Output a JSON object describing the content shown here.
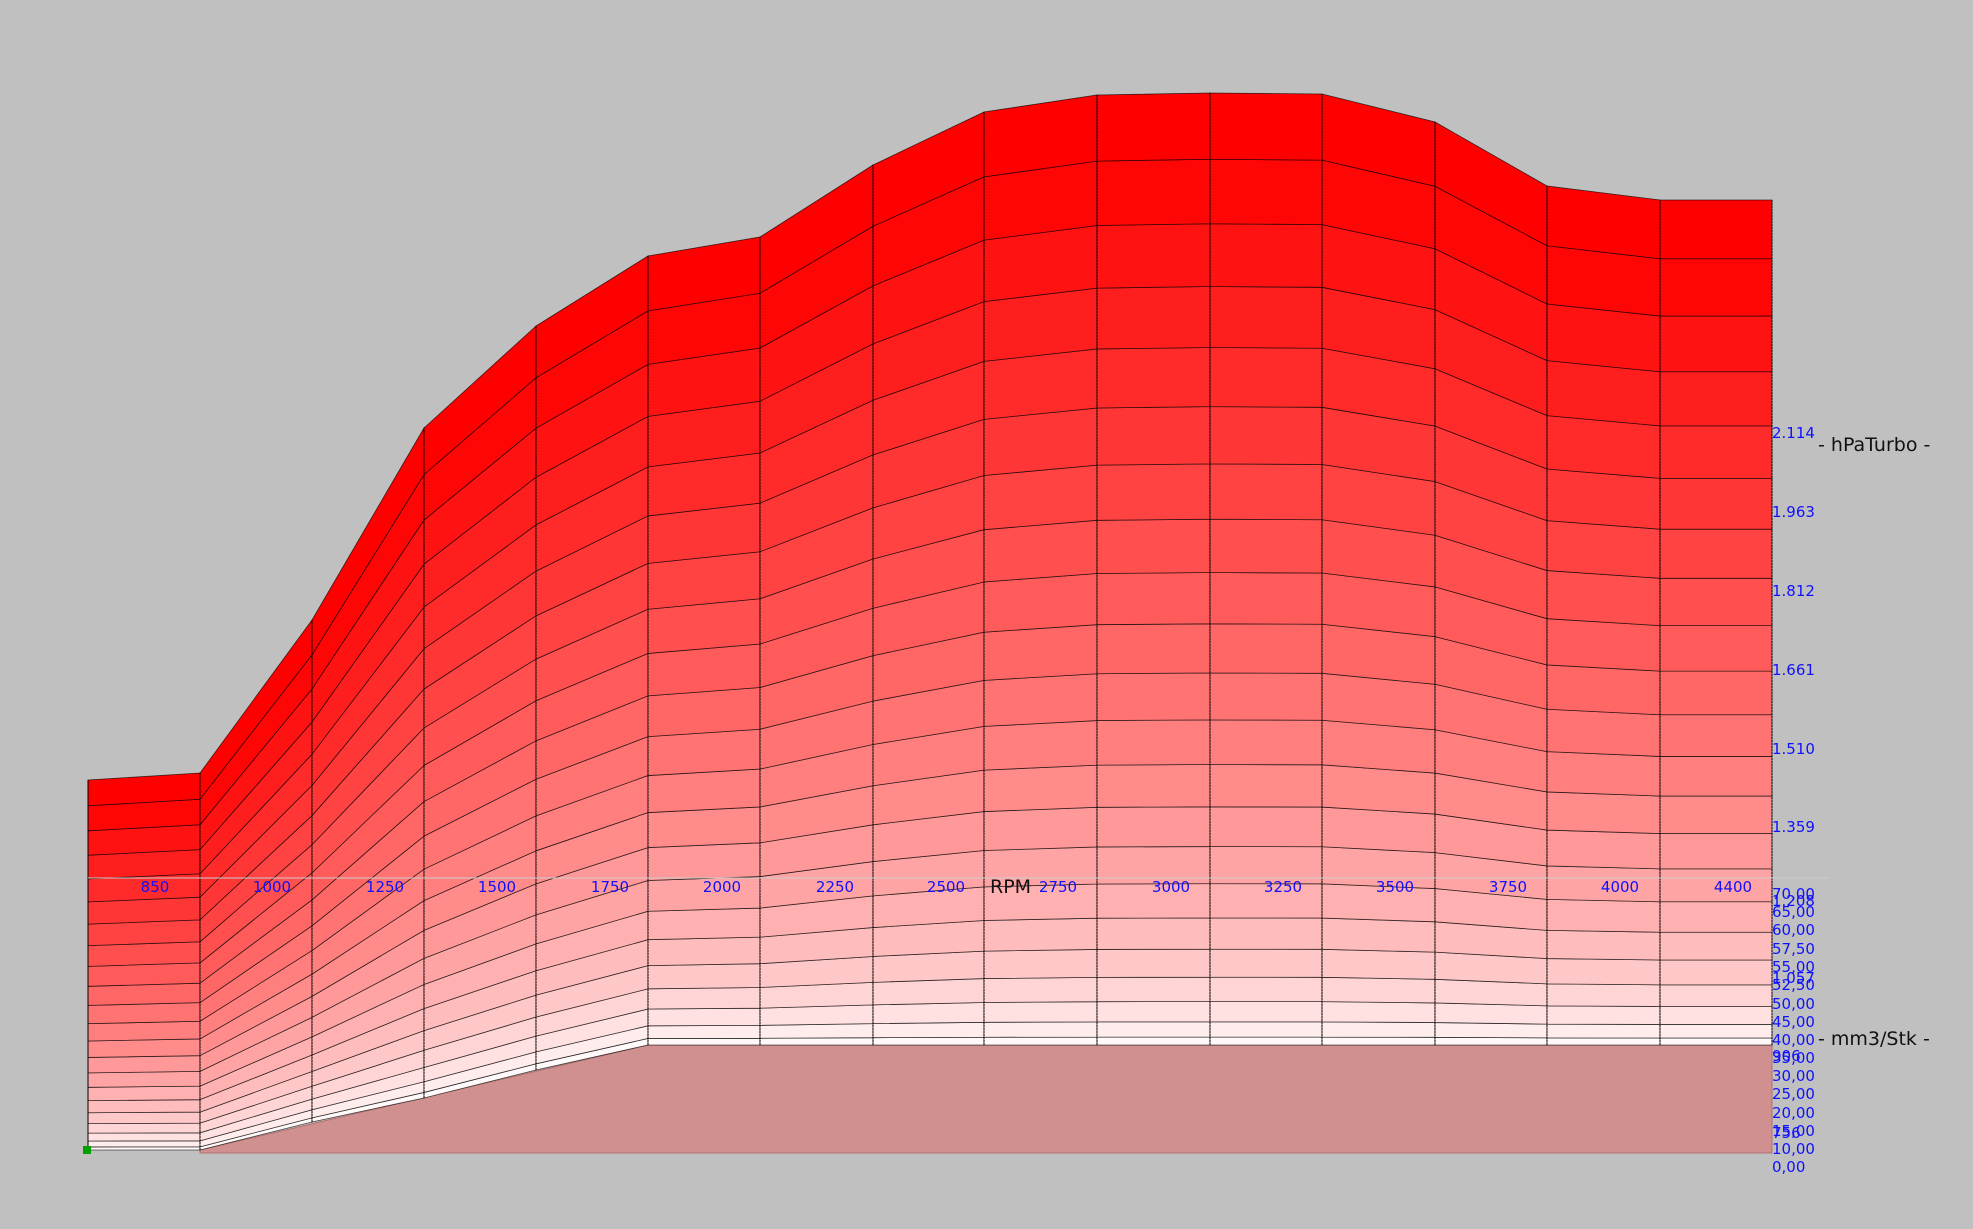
{
  "chart_data": {
    "type": "surface",
    "title": "",
    "xlabel": "RPM",
    "y_axis_title": "- hPaTurbo -",
    "z_axis_title": "- mm3/Stk -",
    "x_ticks": [
      "850",
      "1000",
      "1250",
      "1500",
      "1750",
      "2000",
      "2250",
      "2500",
      "2750",
      "3000",
      "3250",
      "3500",
      "3750",
      "4000",
      "4400"
    ],
    "hPa_ticks": [
      "1.359",
      "1.510",
      "1.661",
      "1.812",
      "1.963",
      "2.114"
    ],
    "mm3_ticks": [
      "0,00",
      "10,00",
      "15,00",
      "20,00",
      "25,00",
      "30,00",
      "35,00",
      "40,00",
      "45,00",
      "50,00",
      "52,50",
      "55,00",
      "57,50",
      "60,00",
      "65,00",
      "70,00"
    ],
    "extra_ticks": [
      "756",
      "906",
      "1.057",
      "1.208"
    ],
    "surface_top_profile": [
      68,
      69,
      78,
      80,
      84,
      84,
      86,
      89,
      90,
      90,
      90,
      89,
      85,
      85,
      85
    ],
    "colors": {
      "background": "#c0c0c0",
      "surface_low": "#ffffff",
      "surface_high": "#ff0000",
      "floor": "#d19090",
      "tick_text": "#1010ff"
    },
    "marker_color": "#00a000"
  }
}
